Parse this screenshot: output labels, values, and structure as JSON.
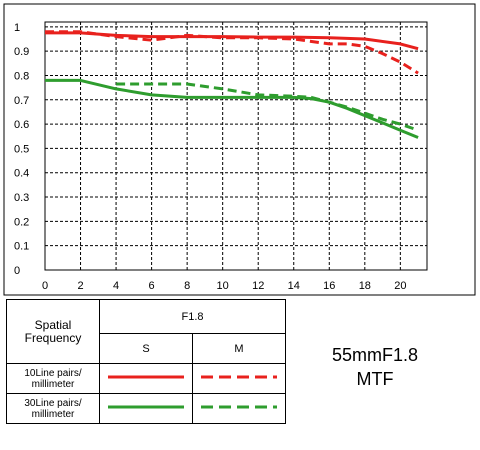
{
  "chart_data": {
    "type": "line",
    "xlim": [
      0,
      21.5
    ],
    "ylim": [
      0,
      1.02
    ],
    "x_ticks": [
      "0",
      "2",
      "4",
      "6",
      "8",
      "10",
      "12",
      "14",
      "16",
      "18",
      "20"
    ],
    "y_ticks": [
      "0",
      "0.1",
      "0.2",
      "0.3",
      "0.4",
      "0.5",
      "0.6",
      "0.7",
      "0.8",
      "0.9",
      "1"
    ],
    "grid": true,
    "series": [
      {
        "name": "10Line pairs/millimeter S",
        "color": "#e8211d",
        "dash": false,
        "x": [
          0,
          2,
          4,
          6,
          8,
          10,
          12,
          14,
          16,
          18,
          20,
          21
        ],
        "y": [
          0.975,
          0.975,
          0.965,
          0.96,
          0.96,
          0.96,
          0.958,
          0.958,
          0.955,
          0.95,
          0.93,
          0.91
        ]
      },
      {
        "name": "10Line pairs/millimeter M",
        "color": "#e8211d",
        "dash": true,
        "x": [
          0,
          2,
          4,
          6,
          8,
          10,
          12,
          14,
          16,
          17,
          18,
          19,
          20,
          21
        ],
        "y": [
          0.98,
          0.98,
          0.96,
          0.945,
          0.965,
          0.955,
          0.955,
          0.95,
          0.93,
          0.93,
          0.92,
          0.89,
          0.855,
          0.81
        ]
      },
      {
        "name": "30Line pairs/millimeter S",
        "color": "#2e9d2e",
        "dash": false,
        "x": [
          0,
          2,
          4,
          6,
          8,
          10,
          12,
          14,
          15,
          16,
          17,
          18,
          19,
          20,
          21
        ],
        "y": [
          0.78,
          0.78,
          0.745,
          0.72,
          0.71,
          0.71,
          0.71,
          0.71,
          0.705,
          0.69,
          0.665,
          0.635,
          0.605,
          0.575,
          0.545
        ]
      },
      {
        "name": "30Line pairs/millimeter M",
        "color": "#2e9d2e",
        "dash": true,
        "x": [
          4,
          6,
          8,
          10,
          12,
          14,
          15,
          16,
          17,
          18,
          19,
          20,
          21
        ],
        "y": [
          0.765,
          0.765,
          0.765,
          0.745,
          0.72,
          0.715,
          0.71,
          0.69,
          0.67,
          0.645,
          0.62,
          0.6,
          0.575
        ]
      }
    ]
  },
  "legend": {
    "heading": "Spatial Frequency",
    "aperture": "F1.8",
    "col_s": "S",
    "col_m": "M",
    "row1_label": "10Line pairs/ millimeter",
    "row2_label": "30Line pairs/ millimeter"
  },
  "caption": {
    "line1": "55mmF1.8",
    "line2": "MTF"
  }
}
